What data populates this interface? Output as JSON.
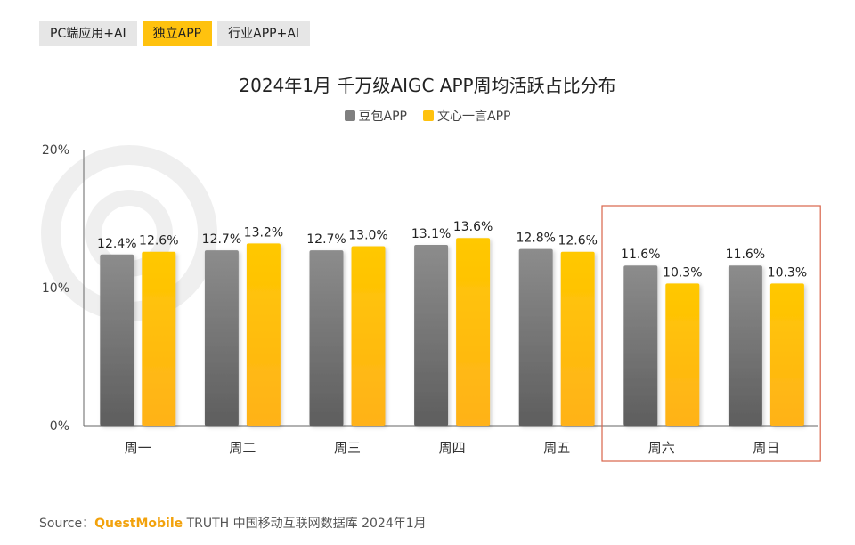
{
  "tabs": [
    {
      "label": "PC端应用+AI",
      "active": false
    },
    {
      "label": "独立APP",
      "active": true
    },
    {
      "label": "行业APP+AI",
      "active": false
    }
  ],
  "colors": {
    "series1": "#7f7f7f",
    "series2": "#ffc20e",
    "highlight_box": "#d9644a",
    "tab_active": "#ffc20e",
    "tab_inactive": "#e6e6e6"
  },
  "chart_data": {
    "type": "bar",
    "title": "2024年1月 千万级AIGC APP周均活跃占比分布",
    "categories": [
      "周一",
      "周二",
      "周三",
      "周四",
      "周五",
      "周六",
      "周日"
    ],
    "series": [
      {
        "name": "豆包APP",
        "values": [
          12.4,
          12.7,
          12.7,
          13.1,
          12.8,
          11.6,
          11.6
        ]
      },
      {
        "name": "文心一言APP",
        "values": [
          12.6,
          13.2,
          13.0,
          13.6,
          12.6,
          10.3,
          10.3
        ]
      }
    ],
    "y_ticks": [
      "0%",
      "10%",
      "20%"
    ],
    "ylim": [
      0,
      20
    ],
    "legend_position": "top-center",
    "grid": false,
    "highlighted_categories": [
      "周六",
      "周日"
    ]
  },
  "source": {
    "prefix": "Source：",
    "brand": "QuestMobile",
    "text": " TRUTH 中国移动互联网数据库 2024年1月"
  }
}
